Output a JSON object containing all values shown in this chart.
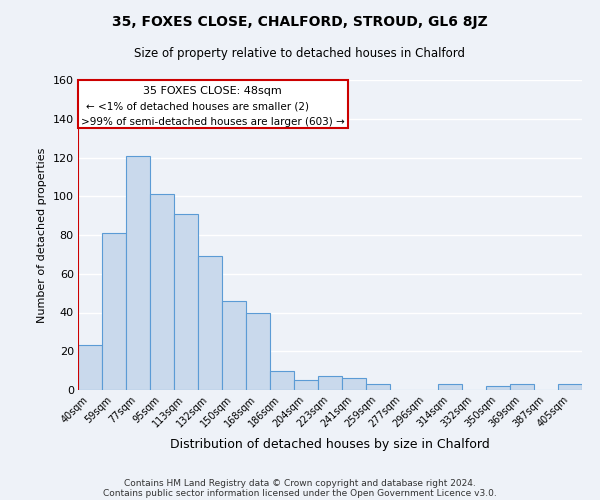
{
  "title": "35, FOXES CLOSE, CHALFORD, STROUD, GL6 8JZ",
  "subtitle": "Size of property relative to detached houses in Chalford",
  "xlabel": "Distribution of detached houses by size in Chalford",
  "ylabel": "Number of detached properties",
  "bar_labels": [
    "40sqm",
    "59sqm",
    "77sqm",
    "95sqm",
    "113sqm",
    "132sqm",
    "150sqm",
    "168sqm",
    "186sqm",
    "204sqm",
    "223sqm",
    "241sqm",
    "259sqm",
    "277sqm",
    "296sqm",
    "314sqm",
    "332sqm",
    "350sqm",
    "369sqm",
    "387sqm",
    "405sqm"
  ],
  "bar_values": [
    23,
    81,
    121,
    101,
    91,
    69,
    46,
    40,
    10,
    5,
    7,
    6,
    3,
    0,
    0,
    3,
    0,
    2,
    3,
    0,
    3
  ],
  "bar_color": "#c9d9ec",
  "bar_edge_color": "#5b9bd5",
  "ylim": [
    0,
    160
  ],
  "yticks": [
    0,
    20,
    40,
    60,
    80,
    100,
    120,
    140,
    160
  ],
  "vline_color": "#cc0000",
  "annotation_title": "35 FOXES CLOSE: 48sqm",
  "annotation_line1": "← <1% of detached houses are smaller (2)",
  "annotation_line2": ">99% of semi-detached houses are larger (603) →",
  "annotation_box_color": "#ffffff",
  "annotation_box_edge": "#cc0000",
  "footer1": "Contains HM Land Registry data © Crown copyright and database right 2024.",
  "footer2": "Contains public sector information licensed under the Open Government Licence v3.0.",
  "bg_color": "#eef2f8",
  "grid_color": "#d8dfe8"
}
